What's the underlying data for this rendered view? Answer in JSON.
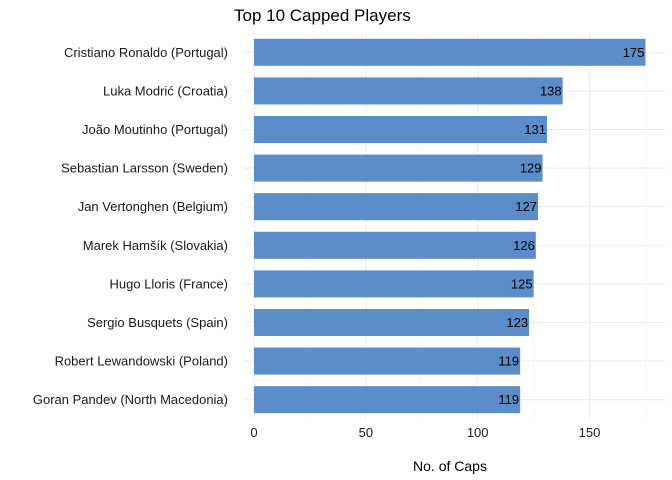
{
  "chart_data": {
    "type": "bar",
    "orientation": "horizontal",
    "title": "Top 10 Capped Players",
    "xlabel": "No. of Caps",
    "ylabel": "",
    "categories": [
      "Cristiano Ronaldo  (Portugal)",
      "Luka Modrić  (Croatia)",
      "João Moutinho (Portugal)",
      "Sebastian Larsson (Sweden)",
      "Jan Vertonghen (Belgium)",
      "Marek Hamšík  (Slovakia)",
      "Hugo Lloris  (France)",
      "Sergio Busquets  (Spain)",
      "Robert Lewandowski  (Poland)",
      "Goran Pandev  (North Macedonia)"
    ],
    "values": [
      175,
      138,
      131,
      129,
      127,
      126,
      125,
      123,
      119,
      119
    ],
    "data_labels": [
      "175",
      "138",
      "131",
      "129",
      "127",
      "126",
      "125",
      "123",
      "119",
      "119"
    ],
    "xlim": [
      0,
      180
    ],
    "xticks": [
      0,
      50,
      100,
      150
    ],
    "xtick_labels": [
      "0",
      "50",
      "100",
      "150"
    ],
    "grid": true,
    "legend": "none",
    "bar_color": "#5a8dca"
  }
}
